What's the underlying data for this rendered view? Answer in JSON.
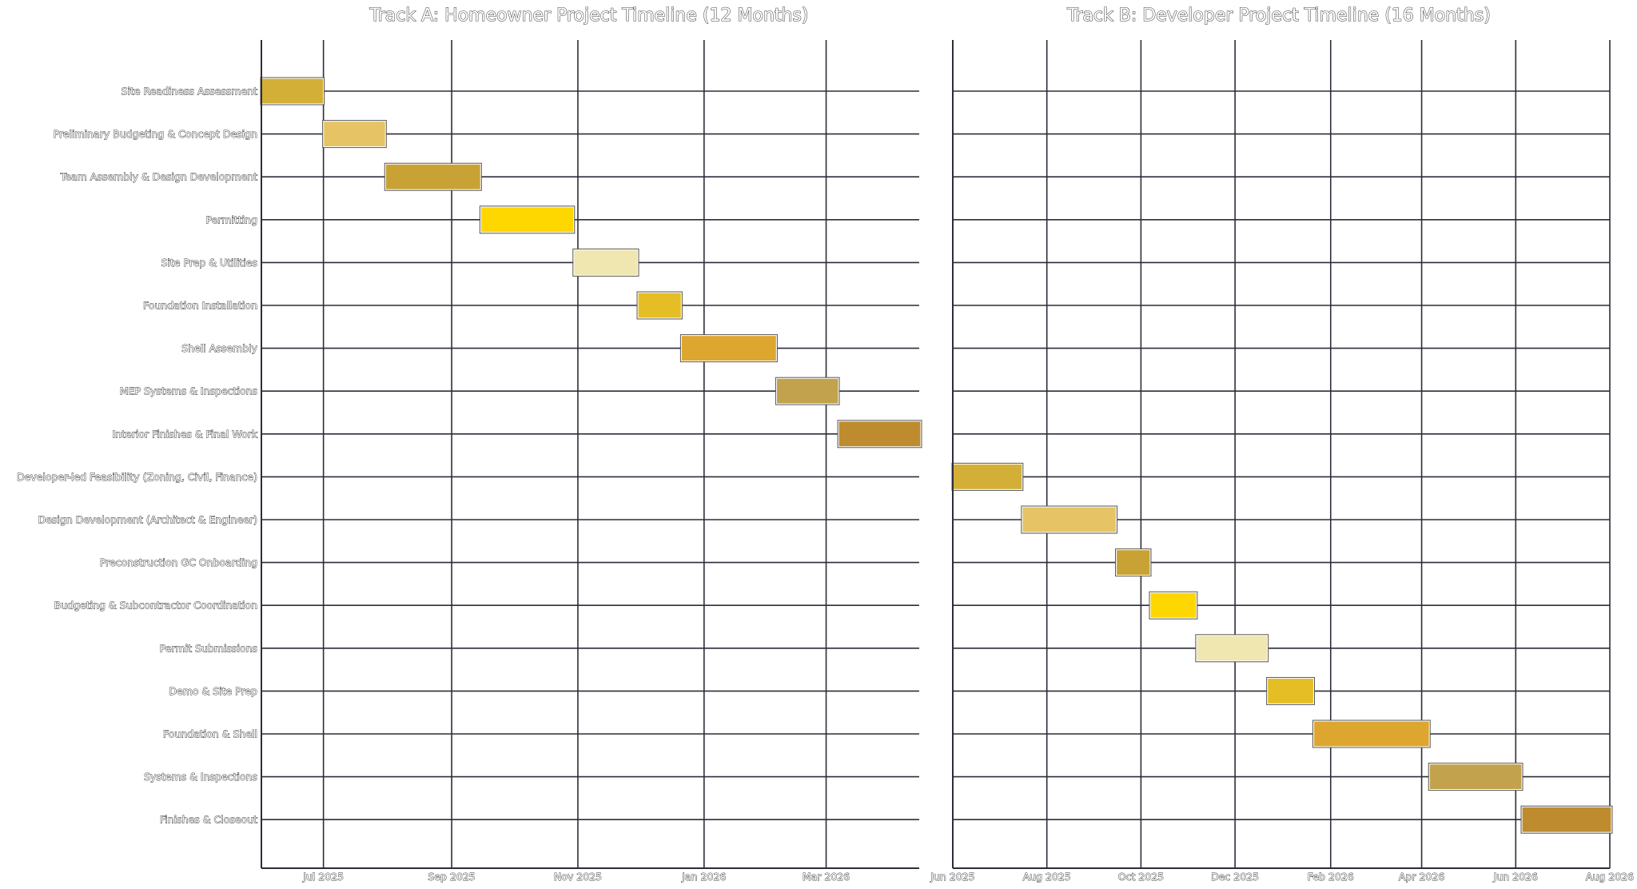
{
  "chart_data": [
    {
      "type": "gantt",
      "title": "Track A:  Homeowner Project Timeline (12 Months)",
      "x_ticks": [
        "Jul 2025",
        "Sep 2025",
        "Nov 2025",
        "Jan 2026",
        "Mar 2026"
      ],
      "x_tick_dates": [
        "2025-07-01",
        "2025-09-01",
        "2025-11-01",
        "2026-01-01",
        "2026-03-01"
      ],
      "xlim": [
        "2025-06-01",
        "2026-04-15"
      ],
      "tasks": [
        {
          "name": "Site Readiness Assessment",
          "start": "2025-06-01",
          "end": "2025-07-01",
          "color": "#D4AF37"
        },
        {
          "name": "Preliminary Budgeting & Concept Design",
          "start": "2025-07-01",
          "end": "2025-07-31",
          "color": "#E6C466"
        },
        {
          "name": "Team Assembly & Design Development",
          "start": "2025-07-31",
          "end": "2025-09-15",
          "color": "#C9A235"
        },
        {
          "name": "Permitting",
          "start": "2025-09-15",
          "end": "2025-10-30",
          "color": "#FFD700"
        },
        {
          "name": "Site Prep & Utilities",
          "start": "2025-10-30",
          "end": "2025-11-30",
          "color": "#F0E6B0"
        },
        {
          "name": "Foundation Installation",
          "start": "2025-11-30",
          "end": "2025-12-21",
          "color": "#E5BE25"
        },
        {
          "name": "Shell Assembly",
          "start": "2025-12-21",
          "end": "2026-02-05",
          "color": "#DDA62E"
        },
        {
          "name": "MEP Systems & Inspections",
          "start": "2026-02-05",
          "end": "2026-03-07",
          "color": "#C2A24C"
        },
        {
          "name": "Interior Finishes & Final Work",
          "start": "2026-03-07",
          "end": "2026-04-21",
          "color": "#BE8C2E"
        }
      ]
    },
    {
      "type": "gantt",
      "title": "Track B:  Developer Project Timeline (16 Months)",
      "x_ticks": [
        "Jun 2025",
        "Aug 2025",
        "Oct 2025",
        "Dec 2025",
        "Feb 2026",
        "Apr 2026",
        "Jun 2026",
        "Aug 2026"
      ],
      "x_tick_dates": [
        "2025-06-01",
        "2025-08-01",
        "2025-10-01",
        "2025-12-01",
        "2026-02-01",
        "2026-04-01",
        "2026-06-01",
        "2026-08-01"
      ],
      "xlim": [
        "2025-06-01",
        "2026-08-01"
      ],
      "tasks": [
        {
          "name": "Developer-led Feasibility (Zoning, Civil, Finance)",
          "start": "2025-06-01",
          "end": "2025-07-16",
          "color": "#D4AF37"
        },
        {
          "name": "Design Development (Architect & Engineer)",
          "start": "2025-07-16",
          "end": "2025-09-15",
          "color": "#E6C466"
        },
        {
          "name": "Preconstruction GC Onboarding",
          "start": "2025-09-15",
          "end": "2025-10-07",
          "color": "#C9A235"
        },
        {
          "name": "Budgeting & Subcontractor Coordination",
          "start": "2025-10-07",
          "end": "2025-11-06",
          "color": "#FFD700"
        },
        {
          "name": "Permit Submissions",
          "start": "2025-11-06",
          "end": "2025-12-22",
          "color": "#F0E6B0"
        },
        {
          "name": "Demo & Site Prep",
          "start": "2025-12-22",
          "end": "2026-01-21",
          "color": "#E5BE25"
        },
        {
          "name": "Foundation & Shell",
          "start": "2026-01-21",
          "end": "2026-04-06",
          "color": "#DDA62E"
        },
        {
          "name": "Systems & Inspections",
          "start": "2026-04-06",
          "end": "2026-06-05",
          "color": "#C2A24C"
        },
        {
          "name": "Finishes & Closeout",
          "start": "2026-06-05",
          "end": "2026-08-04",
          "color": "#BE8C2E"
        }
      ]
    }
  ]
}
